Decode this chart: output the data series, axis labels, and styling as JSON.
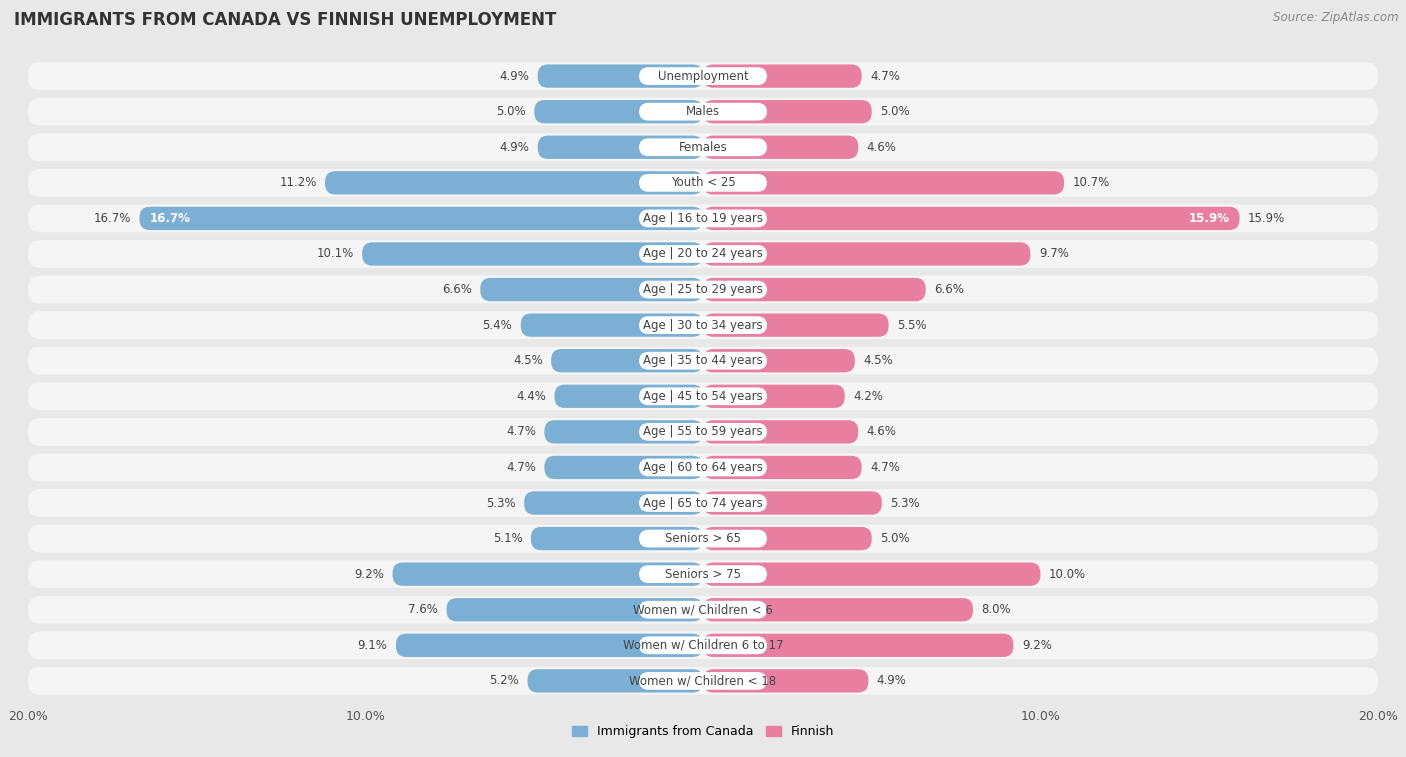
{
  "title": "IMMIGRANTS FROM CANADA VS FINNISH UNEMPLOYMENT",
  "source": "Source: ZipAtlas.com",
  "categories": [
    "Unemployment",
    "Males",
    "Females",
    "Youth < 25",
    "Age | 16 to 19 years",
    "Age | 20 to 24 years",
    "Age | 25 to 29 years",
    "Age | 30 to 34 years",
    "Age | 35 to 44 years",
    "Age | 45 to 54 years",
    "Age | 55 to 59 years",
    "Age | 60 to 64 years",
    "Age | 65 to 74 years",
    "Seniors > 65",
    "Seniors > 75",
    "Women w/ Children < 6",
    "Women w/ Children 6 to 17",
    "Women w/ Children < 18"
  ],
  "canada_values": [
    4.9,
    5.0,
    4.9,
    11.2,
    16.7,
    10.1,
    6.6,
    5.4,
    4.5,
    4.4,
    4.7,
    4.7,
    5.3,
    5.1,
    9.2,
    7.6,
    9.1,
    5.2
  ],
  "finnish_values": [
    4.7,
    5.0,
    4.6,
    10.7,
    15.9,
    9.7,
    6.6,
    5.5,
    4.5,
    4.2,
    4.6,
    4.7,
    5.3,
    5.0,
    10.0,
    8.0,
    9.2,
    4.9
  ],
  "canada_color": "#7bafd4",
  "finnish_color": "#e87fa0",
  "canada_label": "Immigrants from Canada",
  "finnish_label": "Finnish",
  "xlim": 20.0,
  "background_color": "#e8e8e8",
  "bar_background_color": "#f5f5f5",
  "title_fontsize": 12,
  "source_fontsize": 8.5,
  "tick_fontsize": 9,
  "value_fontsize": 8.5,
  "cat_fontsize": 8.5,
  "legend_fontsize": 9
}
